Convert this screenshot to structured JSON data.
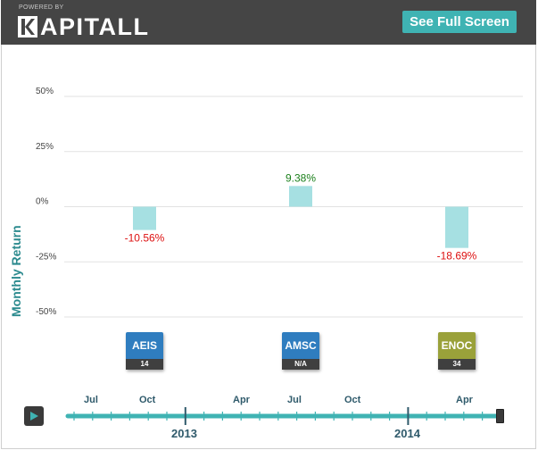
{
  "header": {
    "powered_by": "POWERED BY",
    "logo_text": "APITALL",
    "logo_icon": "kapitall-k-logo",
    "fullscreen_label": "See Full Screen"
  },
  "colors": {
    "header_bg": "#454545",
    "accent": "#3fb3b3",
    "bar": "#a6e0e2",
    "positive": "#1a7f1a",
    "negative": "#dd1111",
    "axis_label": "#2b8a8e"
  },
  "chart_data": {
    "type": "bar",
    "ylabel": "Monthly Return",
    "ylim": [
      -50,
      50
    ],
    "yticks": [
      50,
      25,
      0,
      -25,
      -50
    ],
    "ytick_labels": [
      "50%",
      "25%",
      "0%",
      "-25%",
      "-50%"
    ],
    "grid": true,
    "categories": [
      "AEIS",
      "AMSC",
      "ENOC"
    ],
    "values": [
      -10.56,
      9.38,
      -18.69
    ],
    "value_labels": [
      "-10.56%",
      "9.38%",
      "-18.69%"
    ]
  },
  "tickers": [
    {
      "symbol": "AEIS",
      "sub": "14",
      "color": "#2f7dbf"
    },
    {
      "symbol": "AMSC",
      "sub": "N/A",
      "color": "#2f7dbf"
    },
    {
      "symbol": "ENOC",
      "sub": "34",
      "color": "#9aa13a"
    }
  ],
  "timeline": {
    "play_icon": "play-icon",
    "month_labels": [
      "Jul",
      "Oct",
      "Apr",
      "Jul",
      "Oct",
      "Apr"
    ],
    "year_labels": [
      "2013",
      "2014"
    ]
  }
}
